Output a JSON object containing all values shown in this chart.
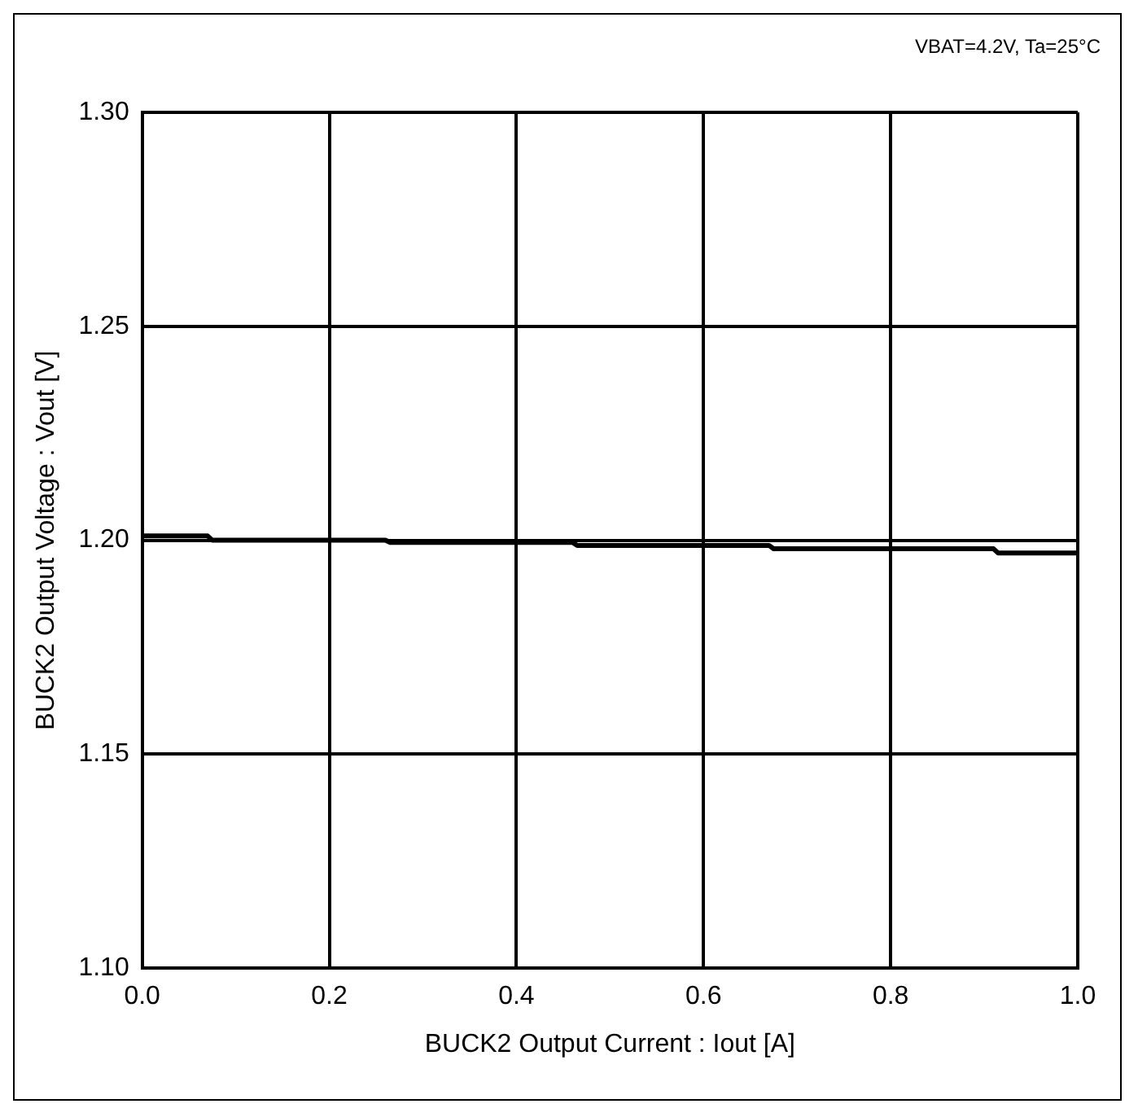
{
  "chart_data": {
    "type": "line",
    "xlabel": "BUCK2 Output Current : Iout [A]",
    "ylabel": "BUCK2 Output Voltage : Vout [V]",
    "annotations": [
      "VBAT=4.2V, Ta=25°C"
    ],
    "series": [
      {
        "color": "#000000",
        "x": [
          0,
          0.07,
          0.075,
          0.26,
          0.265,
          0.46,
          0.465,
          0.67,
          0.675,
          0.91,
          0.915,
          1.0
        ],
        "values": [
          1.201,
          1.201,
          1.2,
          1.2,
          1.1995,
          1.1995,
          1.1988,
          1.1988,
          1.198,
          1.198,
          1.197,
          1.197
        ]
      }
    ],
    "xlim": [
      0,
      1
    ],
    "xticks": [
      {
        "value": 0,
        "label": "0.0"
      },
      0.2,
      0.4,
      0.6,
      0.8,
      {
        "value": 1,
        "label": "1.0"
      }
    ],
    "ylim": [
      1.1,
      1.3
    ],
    "yticks": [
      {
        "value": 1.1,
        "label": "1.10"
      },
      1.15,
      {
        "value": 1.2,
        "label": "1.20"
      },
      1.25,
      {
        "value": 1.3,
        "label": "1.30"
      }
    ],
    "grid": true,
    "legend": false,
    "marker": "none",
    "line_style": "solid"
  }
}
